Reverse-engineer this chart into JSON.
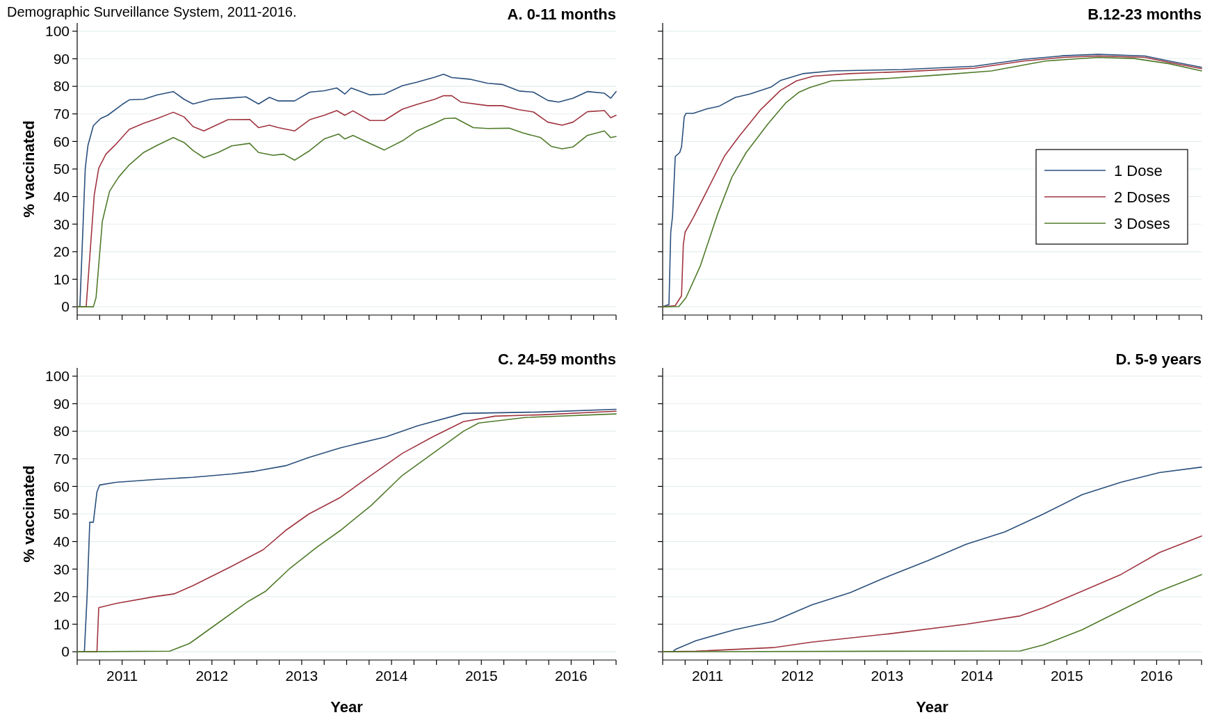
{
  "chart_data": [
    {
      "type": "line",
      "title": "A. 0-11 months",
      "ylabel": "% vaccinated",
      "annotations": [
        "Demographic Surveillance System, 2011-2016."
      ],
      "xlim": [
        2011,
        2017
      ],
      "ylim": [
        -3,
        103
      ],
      "xticks": [
        {
          "value": 2011,
          "label": null
        },
        {
          "value": 2011.25,
          "label": null
        },
        {
          "value": 2011.5,
          "label": null
        },
        {
          "value": 2011.75,
          "label": null
        },
        {
          "value": 2012,
          "label": null
        },
        {
          "value": 2012.25,
          "label": null
        },
        {
          "value": 2012.5,
          "label": null
        },
        {
          "value": 2012.75,
          "label": null
        },
        {
          "value": 2013,
          "label": null
        },
        {
          "value": 2013.25,
          "label": null
        },
        {
          "value": 2013.5,
          "label": null
        },
        {
          "value": 2013.75,
          "label": null
        },
        {
          "value": 2014,
          "label": null
        },
        {
          "value": 2014.25,
          "label": null
        },
        {
          "value": 2014.5,
          "label": null
        },
        {
          "value": 2014.75,
          "label": null
        },
        {
          "value": 2015,
          "label": null
        },
        {
          "value": 2015.25,
          "label": null
        },
        {
          "value": 2015.5,
          "label": null
        },
        {
          "value": 2015.75,
          "label": null
        },
        {
          "value": 2016,
          "label": null
        },
        {
          "value": 2016.25,
          "label": null
        },
        {
          "value": 2016.5,
          "label": null
        },
        {
          "value": 2016.75,
          "label": null
        },
        {
          "value": 2017,
          "label": null
        }
      ],
      "yticks": [
        0,
        10,
        20,
        30,
        40,
        50,
        60,
        70,
        80,
        90,
        100
      ],
      "grid": "y",
      "tick_labels": "y",
      "series": [
        {
          "color": "#2a4f7c",
          "x": [
            2011,
            2011.03,
            2011.09,
            2011.12,
            2011.18,
            2011.26,
            2011.34,
            2011.5,
            2011.58,
            2011.74,
            2011.89,
            2012.07,
            2012.19,
            2012.29,
            2012.49,
            2012.68,
            2012.88,
            2013.02,
            2013.14,
            2013.24,
            2013.42,
            2013.59,
            2013.75,
            2013.89,
            2013.98,
            2014.05,
            2014.26,
            2014.42,
            2014.62,
            2014.78,
            2014.98,
            2015.08,
            2015.17,
            2015.37,
            2015.57,
            2015.73,
            2015.92,
            2016.08,
            2016.24,
            2016.36,
            2016.52,
            2016.68,
            2016.87,
            2016.94,
            2017
          ],
          "values": [
            0,
            0,
            50.3,
            58.6,
            65.7,
            68.3,
            69.5,
            73.4,
            75.1,
            75.3,
            76.9,
            78.1,
            75.3,
            73.6,
            75.3,
            75.7,
            76.2,
            73.6,
            76,
            74.7,
            74.7,
            77.9,
            78.4,
            79.4,
            77.2,
            79.4,
            76.9,
            77.2,
            80.2,
            81.5,
            83.3,
            84.4,
            83.2,
            82.6,
            81.1,
            80.7,
            78.3,
            77.9,
            74.9,
            74.3,
            75.7,
            78.1,
            77.5,
            75.7,
            78.1
          ]
        },
        {
          "color": "#a0343f",
          "x": [
            2011,
            2011.1,
            2011.19,
            2011.24,
            2011.32,
            2011.42,
            2011.58,
            2011.74,
            2011.89,
            2012.07,
            2012.19,
            2012.29,
            2012.41,
            2012.68,
            2012.92,
            2013.02,
            2013.14,
            2013.24,
            2013.42,
            2013.59,
            2013.75,
            2013.89,
            2013.98,
            2014.07,
            2014.26,
            2014.42,
            2014.62,
            2014.78,
            2014.98,
            2015.08,
            2015.17,
            2015.27,
            2015.57,
            2015.73,
            2015.92,
            2016.08,
            2016.24,
            2016.4,
            2016.52,
            2016.68,
            2016.87,
            2016.94,
            2017
          ],
          "values": [
            0,
            0,
            40.6,
            50.3,
            55.4,
            58.6,
            64.4,
            66.6,
            68.3,
            70.6,
            68.9,
            65.4,
            63.8,
            67.9,
            68,
            65,
            65.9,
            65,
            63.8,
            67.9,
            69.5,
            71.2,
            69.5,
            71.1,
            67.6,
            67.6,
            71.7,
            73.4,
            75.3,
            76.6,
            76.6,
            74.3,
            73,
            73,
            71.5,
            70.7,
            67,
            65.9,
            67,
            70.8,
            71.2,
            68.6,
            69.5
          ]
        },
        {
          "color": "#4f7a2a",
          "x": [
            2011,
            2011.18,
            2011.21,
            2011.28,
            2011.36,
            2011.46,
            2011.58,
            2011.74,
            2011.89,
            2012.07,
            2012.19,
            2012.29,
            2012.41,
            2012.57,
            2012.72,
            2012.92,
            2013.02,
            2013.18,
            2013.3,
            2013.42,
            2013.59,
            2013.75,
            2013.91,
            2013.98,
            2014.07,
            2014.26,
            2014.42,
            2014.62,
            2014.78,
            2014.98,
            2015.09,
            2015.21,
            2015.41,
            2015.57,
            2015.81,
            2015.96,
            2016.16,
            2016.28,
            2016.4,
            2016.52,
            2016.68,
            2016.87,
            2016.94,
            2017
          ],
          "values": [
            0,
            0,
            3.3,
            31,
            41.9,
            47,
            51.5,
            56,
            58.6,
            61.4,
            59.6,
            56.7,
            54.1,
            56,
            58.4,
            59.3,
            56,
            55,
            55.4,
            53.2,
            56.7,
            60.9,
            62.7,
            60.9,
            62.2,
            59.3,
            56.9,
            60.2,
            63.8,
            66.6,
            68.3,
            68.5,
            65,
            64.7,
            64.8,
            63.1,
            61.4,
            58.2,
            57.3,
            58,
            62.2,
            63.8,
            61.4,
            61.8
          ]
        }
      ]
    },
    {
      "type": "line",
      "title": "B.12-23 months",
      "legend": "right",
      "xlim": [
        2011,
        2017
      ],
      "ylim": [
        -3,
        103
      ],
      "xticks": [
        {
          "value": 2011,
          "label": null
        },
        {
          "value": 2011.25,
          "label": null
        },
        {
          "value": 2011.5,
          "label": null
        },
        {
          "value": 2011.75,
          "label": null
        },
        {
          "value": 2012,
          "label": null
        },
        {
          "value": 2012.25,
          "label": null
        },
        {
          "value": 2012.5,
          "label": null
        },
        {
          "value": 2012.75,
          "label": null
        },
        {
          "value": 2013,
          "label": null
        },
        {
          "value": 2013.25,
          "label": null
        },
        {
          "value": 2013.5,
          "label": null
        },
        {
          "value": 2013.75,
          "label": null
        },
        {
          "value": 2014,
          "label": null
        },
        {
          "value": 2014.25,
          "label": null
        },
        {
          "value": 2014.5,
          "label": null
        },
        {
          "value": 2014.75,
          "label": null
        },
        {
          "value": 2015,
          "label": null
        },
        {
          "value": 2015.25,
          "label": null
        },
        {
          "value": 2015.5,
          "label": null
        },
        {
          "value": 2015.75,
          "label": null
        },
        {
          "value": 2016,
          "label": null
        },
        {
          "value": 2016.25,
          "label": null
        },
        {
          "value": 2016.5,
          "label": null
        },
        {
          "value": 2016.75,
          "label": null
        },
        {
          "value": 2017,
          "label": null
        }
      ],
      "yticks": [
        {
          "value": 0,
          "label": null
        },
        {
          "value": 10,
          "label": null
        },
        {
          "value": 20,
          "label": null
        },
        {
          "value": 30,
          "label": null
        },
        {
          "value": 40,
          "label": null
        },
        {
          "value": 50,
          "label": null
        },
        {
          "value": 60,
          "label": null
        },
        {
          "value": 70,
          "label": null
        },
        {
          "value": 80,
          "label": null
        },
        {
          "value": 90,
          "label": null
        },
        {
          "value": 100,
          "label": null
        }
      ],
      "grid": "y",
      "tick_labels": false,
      "series": [
        {
          "name": "1 Dose",
          "color": "#2a4f7c",
          "x": [
            2011,
            2011.04,
            2011.07,
            2011.09,
            2011.11,
            2011.14,
            2011.19,
            2011.21,
            2011.24,
            2011.26,
            2011.34,
            2011.5,
            2011.63,
            2011.81,
            2011.97,
            2012.21,
            2012.31,
            2012.56,
            2012.88,
            2013.67,
            2014.47,
            2015.02,
            2015.46,
            2015.85,
            2016.37,
            2016.64,
            2017
          ],
          "values": [
            0,
            0.5,
            0.8,
            27.1,
            32.9,
            54.5,
            56,
            58,
            68.9,
            70.2,
            70.2,
            71.9,
            72.8,
            76,
            77.2,
            79.8,
            82.1,
            84.6,
            85.6,
            86.1,
            87.3,
            89.8,
            91.1,
            91.6,
            91,
            89.2,
            86.9
          ]
        },
        {
          "name": "2 Doses",
          "color": "#a0343f",
          "x": [
            2011,
            2011.14,
            2011.21,
            2011.23,
            2011.25,
            2011.34,
            2011.5,
            2011.69,
            2011.85,
            2012.09,
            2012.31,
            2012.49,
            2012.68,
            2013.08,
            2013.67,
            2014.47,
            2015.02,
            2015.46,
            2015.85,
            2016.37,
            2016.64,
            2017
          ],
          "values": [
            0,
            0.4,
            4,
            22.6,
            27.1,
            32.3,
            42.5,
            54.8,
            61.8,
            71.5,
            78.5,
            82,
            83.7,
            84.6,
            85.3,
            86.6,
            89.2,
            90.5,
            91,
            90.5,
            88.7,
            86.4
          ]
        },
        {
          "name": "3 Doses",
          "color": "#4f7a2a",
          "x": [
            2011,
            2011.18,
            2011.26,
            2011.42,
            2011.61,
            2011.77,
            2011.93,
            2012.17,
            2012.37,
            2012.52,
            2012.64,
            2012.88,
            2013.48,
            2014.07,
            2014.66,
            2015.26,
            2015.85,
            2016.25,
            2016.64,
            2017
          ],
          "values": [
            0,
            0.1,
            3.3,
            14.9,
            33.5,
            47,
            56,
            66.3,
            74,
            77.9,
            79.6,
            82,
            82.8,
            84.1,
            85.6,
            89.2,
            90.5,
            90.1,
            88.2,
            85.6
          ]
        }
      ]
    },
    {
      "type": "line",
      "title": "C. 24-59 months",
      "xlabel": "Year",
      "ylabel": "% vaccinated",
      "xlim": [
        2011,
        2017
      ],
      "ylim": [
        -3,
        103
      ],
      "xticks": [
        {
          "value": 2011,
          "label": null
        },
        {
          "value": 2011.25,
          "label": null
        },
        {
          "value": 2011.5,
          "label": "2011"
        },
        {
          "value": 2011.75,
          "label": null
        },
        {
          "value": 2012,
          "label": null
        },
        {
          "value": 2012.25,
          "label": null
        },
        {
          "value": 2012.5,
          "label": "2012"
        },
        {
          "value": 2012.75,
          "label": null
        },
        {
          "value": 2013,
          "label": null
        },
        {
          "value": 2013.25,
          "label": null
        },
        {
          "value": 2013.5,
          "label": "2013"
        },
        {
          "value": 2013.75,
          "label": null
        },
        {
          "value": 2014,
          "label": null
        },
        {
          "value": 2014.25,
          "label": null
        },
        {
          "value": 2014.5,
          "label": "2014"
        },
        {
          "value": 2014.75,
          "label": null
        },
        {
          "value": 2015,
          "label": null
        },
        {
          "value": 2015.25,
          "label": null
        },
        {
          "value": 2015.5,
          "label": "2015"
        },
        {
          "value": 2015.75,
          "label": null
        },
        {
          "value": 2016,
          "label": null
        },
        {
          "value": 2016.25,
          "label": null
        },
        {
          "value": 2016.5,
          "label": "2016"
        },
        {
          "value": 2016.75,
          "label": null
        },
        {
          "value": 2017,
          "label": null
        }
      ],
      "yticks": [
        0,
        10,
        20,
        30,
        40,
        50,
        60,
        70,
        80,
        90,
        100
      ],
      "grid": "y",
      "series": [
        {
          "color": "#2a4f7c",
          "x": [
            2011,
            2011.08,
            2011.11,
            2011.14,
            2011.18,
            2011.22,
            2011.25,
            2011.43,
            2011.86,
            2012.29,
            2012.72,
            2012.98,
            2013.32,
            2013.58,
            2013.93,
            2014.44,
            2014.79,
            2015.3,
            2016.17,
            2017
          ],
          "values": [
            0,
            0,
            20,
            47,
            47,
            58,
            60.5,
            61.5,
            62.5,
            63.3,
            64.5,
            65.5,
            67.5,
            70.5,
            74,
            78,
            82,
            86.5,
            87,
            88
          ]
        },
        {
          "color": "#a0343f",
          "x": [
            2011,
            2011.22,
            2011.24,
            2011.43,
            2011.86,
            2012.08,
            2012.29,
            2012.72,
            2013.07,
            2013.32,
            2013.58,
            2013.93,
            2014.27,
            2014.62,
            2014.96,
            2015.3,
            2015.65,
            2016.17,
            2017
          ],
          "values": [
            0,
            0,
            16,
            17.5,
            20,
            21,
            24,
            31,
            37,
            44,
            50,
            56,
            64,
            72,
            78,
            83.5,
            85.5,
            86,
            87.3
          ]
        },
        {
          "color": "#4f7a2a",
          "x": [
            2011,
            2012.03,
            2012.25,
            2012.55,
            2012.89,
            2013.1,
            2013.36,
            2013.67,
            2013.93,
            2014.27,
            2014.62,
            2014.96,
            2015.3,
            2015.47,
            2015.99,
            2017
          ],
          "values": [
            0,
            0.2,
            3,
            10,
            18,
            22,
            30,
            38,
            44,
            53,
            64,
            72,
            80,
            83,
            85,
            86.3
          ]
        }
      ]
    },
    {
      "type": "line",
      "title": "D. 5-9 years",
      "xlabel": "Year",
      "xlim": [
        2011,
        2017
      ],
      "ylim": [
        -3,
        103
      ],
      "xticks": [
        {
          "value": 2011,
          "label": null
        },
        {
          "value": 2011.25,
          "label": null
        },
        {
          "value": 2011.5,
          "label": "2011"
        },
        {
          "value": 2011.75,
          "label": null
        },
        {
          "value": 2012,
          "label": null
        },
        {
          "value": 2012.25,
          "label": null
        },
        {
          "value": 2012.5,
          "label": "2012"
        },
        {
          "value": 2012.75,
          "label": null
        },
        {
          "value": 2013,
          "label": null
        },
        {
          "value": 2013.25,
          "label": null
        },
        {
          "value": 2013.5,
          "label": "2013"
        },
        {
          "value": 2013.75,
          "label": null
        },
        {
          "value": 2014,
          "label": null
        },
        {
          "value": 2014.25,
          "label": null
        },
        {
          "value": 2014.5,
          "label": "2014"
        },
        {
          "value": 2014.75,
          "label": null
        },
        {
          "value": 2015,
          "label": null
        },
        {
          "value": 2015.25,
          "label": null
        },
        {
          "value": 2015.5,
          "label": "2015"
        },
        {
          "value": 2015.75,
          "label": null
        },
        {
          "value": 2016,
          "label": null
        },
        {
          "value": 2016.25,
          "label": null
        },
        {
          "value": 2016.5,
          "label": "2016"
        },
        {
          "value": 2016.75,
          "label": null
        },
        {
          "value": 2017,
          "label": null
        }
      ],
      "yticks": [
        {
          "value": 0,
          "label": null
        },
        {
          "value": 10,
          "label": null
        },
        {
          "value": 20,
          "label": null
        },
        {
          "value": 30,
          "label": null
        },
        {
          "value": 40,
          "label": null
        },
        {
          "value": 50,
          "label": null
        },
        {
          "value": 60,
          "label": null
        },
        {
          "value": 70,
          "label": null
        },
        {
          "value": 80,
          "label": null
        },
        {
          "value": 90,
          "label": null
        },
        {
          "value": 100,
          "label": null
        }
      ],
      "grid": "y",
      "tick_labels": "x",
      "series": [
        {
          "color": "#2a4f7c",
          "x": [
            2011,
            2011.11,
            2011.15,
            2011.37,
            2011.8,
            2012.23,
            2012.66,
            2013.09,
            2013.52,
            2013.95,
            2014.38,
            2014.81,
            2015.24,
            2015.67,
            2016.1,
            2016.53,
            2017
          ],
          "values": [
            0,
            0,
            1,
            4,
            8,
            11,
            17,
            21.5,
            27.5,
            33,
            39,
            43.5,
            50,
            57,
            61.5,
            65,
            67
          ]
        },
        {
          "color": "#a0343f",
          "x": [
            2011,
            2011.37,
            2012.23,
            2012.66,
            2013.52,
            2014.38,
            2014.98,
            2015.24,
            2015.67,
            2016.1,
            2016.53,
            2017
          ],
          "values": [
            0,
            0.2,
            1.5,
            3.5,
            6.5,
            10,
            13,
            16,
            22,
            28,
            36,
            42
          ]
        },
        {
          "color": "#4f7a2a",
          "x": [
            2011,
            2014.98,
            2015.24,
            2015.67,
            2016.1,
            2016.53,
            2017
          ],
          "values": [
            0,
            0.3,
            2.5,
            8,
            15,
            22,
            28
          ]
        }
      ]
    }
  ]
}
